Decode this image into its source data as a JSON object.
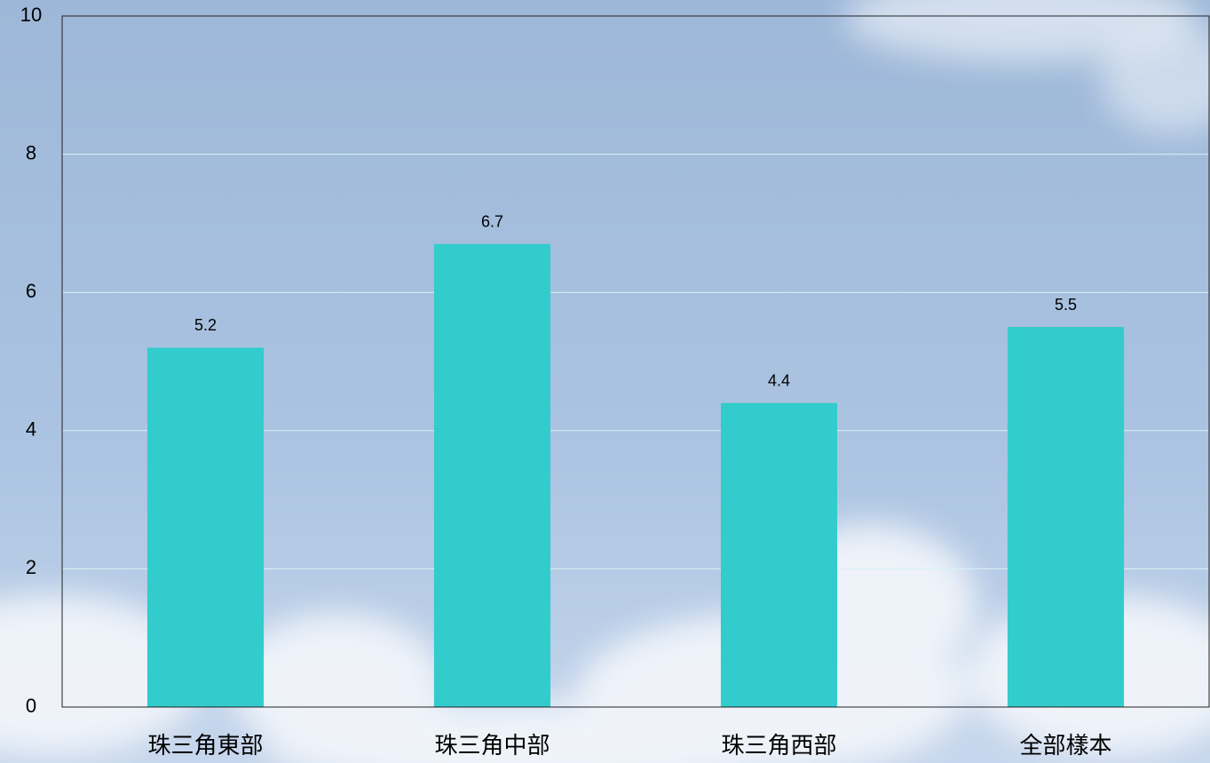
{
  "chart_data": {
    "type": "bar",
    "categories": [
      "珠三角東部",
      "珠三角中部",
      "珠三角西部",
      "全部樣本"
    ],
    "values": [
      5.2,
      6.7,
      4.4,
      5.5
    ],
    "color": "#33cccc",
    "ylim": [
      0,
      10
    ],
    "yticks": [
      0,
      2,
      4,
      6,
      8,
      10
    ],
    "grid": true
  }
}
